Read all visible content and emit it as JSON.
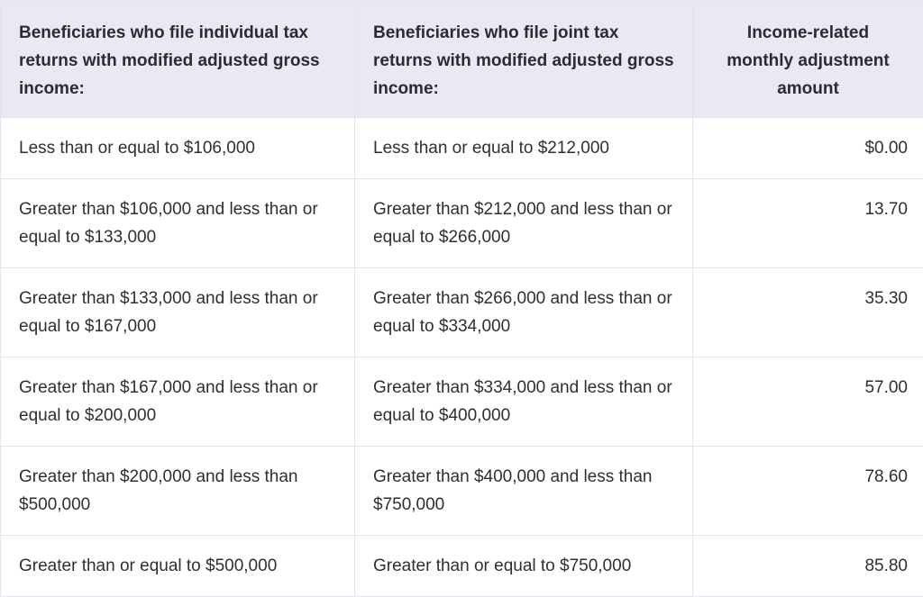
{
  "table": {
    "headers": [
      "Beneficiaries who file individual tax returns with modified adjusted gross income:",
      "Beneficiaries who file joint tax returns with modified adjusted gross income:",
      "Income-related monthly adjustment amount"
    ],
    "rows": [
      {
        "individual": "Less than or equal to $106,000",
        "joint": "Less than or equal to $212,000",
        "amount": "$0.00"
      },
      {
        "individual": "Greater than $106,000 and less than or equal to $133,000",
        "joint": "Greater than $212,000 and less than or equal to $266,000",
        "amount": "13.70"
      },
      {
        "individual": "Greater than $133,000 and less than or equal to $167,000",
        "joint": "Greater than $266,000 and less than or equal to $334,000",
        "amount": "35.30"
      },
      {
        "individual": "Greater than $167,000 and less than or equal to $200,000",
        "joint": "Greater than $334,000 and less than or equal to $400,000",
        "amount": "57.00"
      },
      {
        "individual": "Greater than $200,000 and less than $500,000",
        "joint": "Greater than $400,000 and less than $750,000",
        "amount": "78.60"
      },
      {
        "individual": "Greater than or equal to $500,000",
        "joint": "Greater than or equal to $750,000",
        "amount": "85.80"
      }
    ]
  },
  "colors": {
    "header_bg": "#e9e9f4",
    "border": "#e4e4ea",
    "text": "#2f2f33"
  }
}
